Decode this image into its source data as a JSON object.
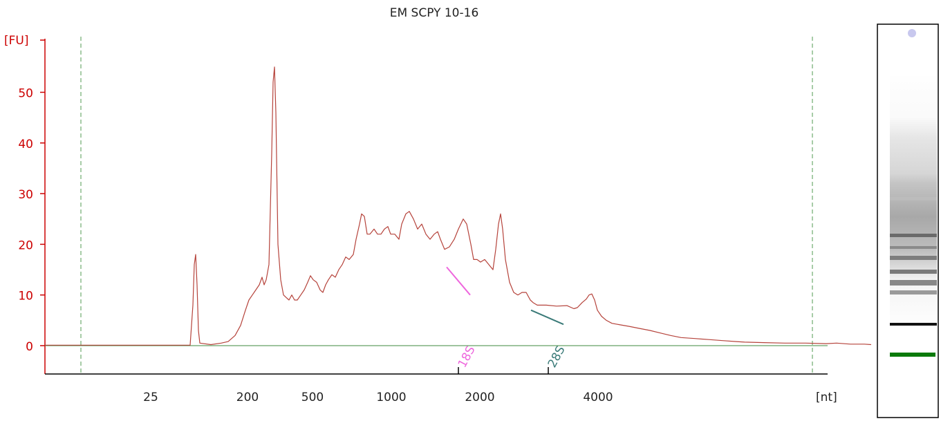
{
  "chart_data": {
    "type": "line",
    "title": "EM SCPY 10-16",
    "ylabel": "[FU]",
    "xlabel": "[nt]",
    "ylim": [
      -5.5,
      60
    ],
    "y_ticks": [
      0,
      10,
      20,
      30,
      40,
      50
    ],
    "x_tick_labels": [
      "25",
      "200",
      "500",
      "1000",
      "2000",
      "4000"
    ],
    "markers": [
      {
        "label": "18S",
        "color": "#ee66dd"
      },
      {
        "label": "28S",
        "color": "#3a7a78"
      }
    ],
    "series": [
      {
        "color": "#b5423a",
        "points": [
          [
            0,
            0.1
          ],
          [
            150,
            0.1
          ],
          [
            210,
            0.1
          ],
          [
            214,
            8
          ],
          [
            216,
            16
          ],
          [
            218,
            18
          ],
          [
            220,
            12
          ],
          [
            222,
            3
          ],
          [
            224,
            0.5
          ],
          [
            240,
            0.2
          ],
          [
            255,
            0.5
          ],
          [
            265,
            0.8
          ],
          [
            275,
            2
          ],
          [
            283,
            4
          ],
          [
            290,
            7
          ],
          [
            295,
            9
          ],
          [
            300,
            10
          ],
          [
            305,
            11
          ],
          [
            310,
            12
          ],
          [
            314,
            13.5
          ],
          [
            317,
            12
          ],
          [
            320,
            13
          ],
          [
            324,
            16
          ],
          [
            328,
            38
          ],
          [
            330,
            52
          ],
          [
            332,
            55
          ],
          [
            334,
            46
          ],
          [
            337,
            20
          ],
          [
            341,
            13
          ],
          [
            345,
            10
          ],
          [
            349,
            9.5
          ],
          [
            353,
            9
          ],
          [
            357,
            10
          ],
          [
            361,
            9
          ],
          [
            365,
            9
          ],
          [
            370,
            10
          ],
          [
            375,
            11
          ],
          [
            380,
            12.5
          ],
          [
            384,
            13.8
          ],
          [
            388,
            13
          ],
          [
            393,
            12.5
          ],
          [
            398,
            11
          ],
          [
            402,
            10.5
          ],
          [
            406,
            12
          ],
          [
            410,
            13
          ],
          [
            415,
            14
          ],
          [
            420,
            13.5
          ],
          [
            425,
            15
          ],
          [
            430,
            16
          ],
          [
            435,
            17.5
          ],
          [
            440,
            17
          ],
          [
            446,
            18
          ],
          [
            450,
            21
          ],
          [
            455,
            24
          ],
          [
            458,
            26
          ],
          [
            462,
            25.5
          ],
          [
            466,
            22
          ],
          [
            470,
            22
          ],
          [
            476,
            23
          ],
          [
            481,
            22
          ],
          [
            486,
            22
          ],
          [
            491,
            23
          ],
          [
            496,
            23.5
          ],
          [
            500,
            22
          ],
          [
            506,
            22
          ],
          [
            512,
            21
          ],
          [
            516,
            24
          ],
          [
            522,
            26
          ],
          [
            527,
            26.5
          ],
          [
            533,
            25
          ],
          [
            539,
            23
          ],
          [
            545,
            24
          ],
          [
            551,
            22
          ],
          [
            557,
            21
          ],
          [
            563,
            22
          ],
          [
            568,
            22.5
          ],
          [
            572,
            21
          ],
          [
            578,
            19
          ],
          [
            585,
            19.5
          ],
          [
            592,
            21
          ],
          [
            598,
            23
          ],
          [
            605,
            25
          ],
          [
            610,
            24
          ],
          [
            616,
            20
          ],
          [
            620,
            17
          ],
          [
            625,
            17
          ],
          [
            630,
            16.5
          ],
          [
            636,
            17
          ],
          [
            642,
            16
          ],
          [
            648,
            15
          ],
          [
            652,
            19
          ],
          [
            656,
            24
          ],
          [
            659,
            26
          ],
          [
            662,
            23
          ],
          [
            666,
            17
          ],
          [
            672,
            12.5
          ],
          [
            678,
            10.5
          ],
          [
            684,
            10
          ],
          [
            690,
            10.5
          ],
          [
            696,
            10.5
          ],
          [
            702,
            9
          ],
          [
            706,
            8.5
          ],
          [
            712,
            8
          ],
          [
            725,
            8
          ],
          [
            740,
            7.8
          ],
          [
            755,
            7.9
          ],
          [
            765,
            7.3
          ],
          [
            770,
            7.5
          ],
          [
            777,
            8.5
          ],
          [
            783,
            9.2
          ],
          [
            787,
            10
          ],
          [
            791,
            10.2
          ],
          [
            795,
            9
          ],
          [
            799,
            7
          ],
          [
            805,
            5.8
          ],
          [
            812,
            5
          ],
          [
            820,
            4.4
          ],
          [
            832,
            4.1
          ],
          [
            845,
            3.8
          ],
          [
            860,
            3.4
          ],
          [
            875,
            3
          ],
          [
            890,
            2.5
          ],
          [
            905,
            2
          ],
          [
            920,
            1.6
          ],
          [
            940,
            1.4
          ],
          [
            960,
            1.2
          ],
          [
            980,
            1
          ],
          [
            1000,
            0.8
          ],
          [
            1012,
            0.7
          ],
          [
            1040,
            0.6
          ],
          [
            1070,
            0.5
          ],
          [
            1100,
            0.5
          ],
          [
            1130,
            0.4
          ],
          [
            1145,
            0.5
          ],
          [
            1165,
            0.3
          ],
          [
            1175,
            0.3
          ],
          [
            1185,
            0.3
          ],
          [
            1195,
            0.2
          ]
        ]
      }
    ]
  }
}
